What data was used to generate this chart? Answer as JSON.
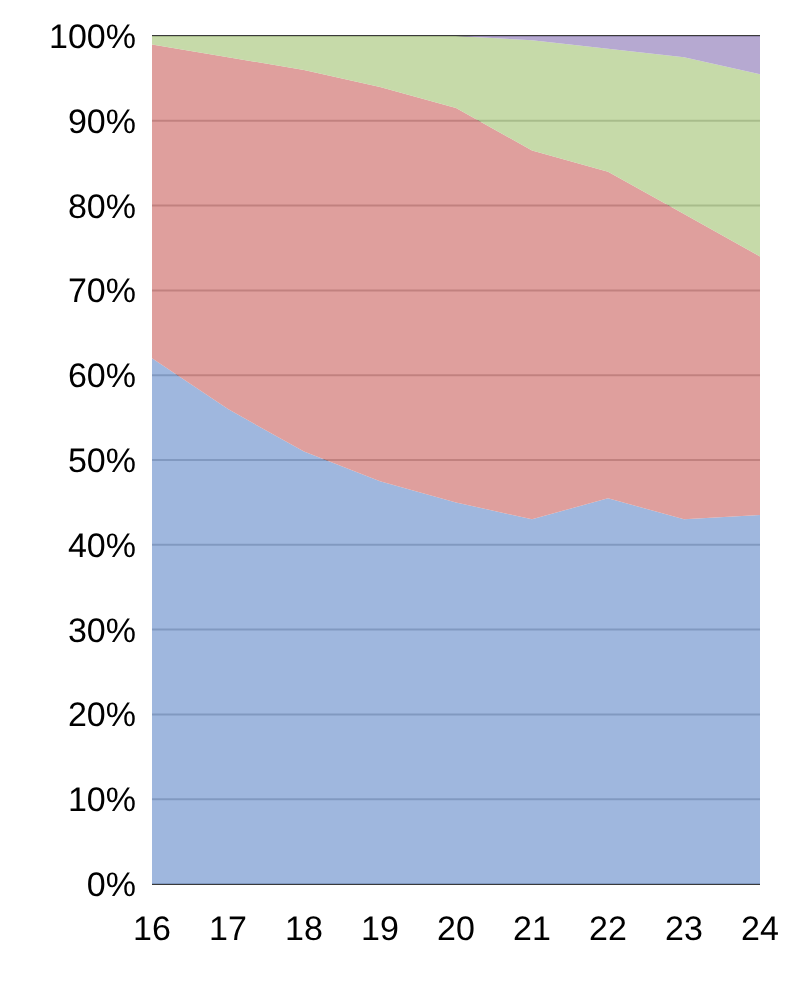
{
  "chart_data": {
    "type": "area",
    "stacked": true,
    "x": [
      16,
      17,
      18,
      19,
      20,
      21,
      22,
      23,
      24
    ],
    "series": [
      {
        "color": "#8eaad8",
        "values": [
          62,
          56,
          51,
          47.5,
          45,
          43,
          45.5,
          43,
          43.5
        ]
      },
      {
        "color": "#d98e8c",
        "values": [
          37,
          41.5,
          45,
          46.5,
          46.5,
          43.5,
          38.5,
          36,
          30.5
        ]
      },
      {
        "color": "#bcd49a",
        "values": [
          1,
          2.5,
          4,
          6,
          8.5,
          13,
          14.5,
          18.5,
          21.5
        ]
      },
      {
        "color": "#a99ac9",
        "values": [
          0,
          0,
          0,
          0,
          0,
          0.5,
          1.5,
          2.5,
          4.5
        ]
      }
    ],
    "xlim": [
      16,
      24
    ],
    "xticks": [
      16,
      17,
      18,
      19,
      20,
      21,
      22,
      23,
      24
    ],
    "ylim": [
      0,
      100
    ],
    "yticks": [
      {
        "value": 0,
        "label": "0%"
      },
      {
        "value": 10,
        "label": "10%"
      },
      {
        "value": 20,
        "label": "20%"
      },
      {
        "value": 30,
        "label": "30%"
      },
      {
        "value": 40,
        "label": "40%"
      },
      {
        "value": 50,
        "label": "50%"
      },
      {
        "value": 60,
        "label": "60%"
      },
      {
        "value": 70,
        "label": "70%"
      },
      {
        "value": 80,
        "label": "80%"
      },
      {
        "value": 90,
        "label": "90%"
      },
      {
        "value": 100,
        "label": "100%"
      }
    ],
    "grid": "y",
    "legend": false
  }
}
